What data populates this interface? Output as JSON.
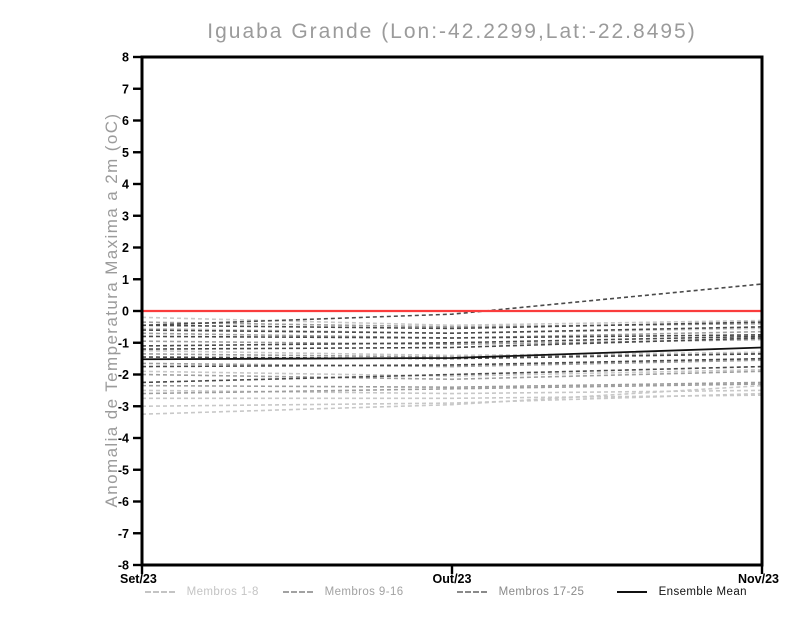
{
  "title": "Iguaba Grande (Lon:-42.2299,Lat:-22.8495)",
  "y_axis": {
    "label": "Anomalia de Temperatura Maxima a 2m (oC)",
    "min": -8,
    "max": 8,
    "tick_step": 1
  },
  "x_axis": {
    "labels": [
      "Set/23",
      "Out/23",
      "Nov/23"
    ]
  },
  "legend": [
    {
      "label": "Membros 1-8",
      "color": "#c4c4c4",
      "style": "dashed"
    },
    {
      "label": "Membros 9-16",
      "color": "#a2a2a2",
      "style": "dashed"
    },
    {
      "label": "Membros 17-25",
      "color": "#8a8a8a",
      "style": "dashed"
    },
    {
      "label": "Ensemble Mean",
      "color": "#111111",
      "style": "solid"
    }
  ],
  "colors": {
    "zero_line": "#fa3c3c",
    "frame": "#000000",
    "title_text": "#9b9b9b",
    "tick_text": "#000000",
    "member_groups": [
      "#c8c8c8",
      "#9e9e9e",
      "#4a4a4a"
    ],
    "ensemble_mean": "#111111"
  },
  "chart_data": {
    "type": "line",
    "x": [
      "Set/23",
      "Out/23",
      "Nov/23"
    ],
    "ylim": [
      -8,
      8
    ],
    "ytick_step": 1,
    "grid": false,
    "zero_line": 0,
    "title": "Iguaba Grande (Lon:-42.2299,Lat:-22.8495)",
    "ylabel": "Anomalia de Temperatura Maxima a 2m (oC)",
    "legend_position": "bottom",
    "groups": [
      {
        "name": "Membros 1-8",
        "style": "dashed",
        "members": [
          [
            -0.2,
            -0.45,
            -0.3
          ],
          [
            -0.55,
            -0.7,
            -0.55
          ],
          [
            -1.25,
            -1.4,
            -1.3
          ],
          [
            -1.9,
            -2.05,
            -1.85
          ],
          [
            -2.5,
            -2.6,
            -2.5
          ],
          [
            -2.75,
            -2.75,
            -2.65
          ],
          [
            -3.0,
            -2.9,
            -2.6
          ],
          [
            -3.25,
            -2.95,
            -2.35
          ]
        ]
      },
      {
        "name": "Membros 9-16",
        "style": "dashed",
        "members": [
          [
            -0.35,
            -0.5,
            -0.4
          ],
          [
            -0.7,
            -0.85,
            -0.65
          ],
          [
            -0.95,
            -1.05,
            -0.9
          ],
          [
            -1.35,
            -1.45,
            -1.35
          ],
          [
            -1.65,
            -1.75,
            -1.55
          ],
          [
            -2.0,
            -2.15,
            -1.9
          ],
          [
            -2.35,
            -2.4,
            -2.25
          ],
          [
            -2.6,
            -2.45,
            -2.3
          ]
        ]
      },
      {
        "name": "Membros 17-25",
        "style": "dashed",
        "members": [
          [
            -0.45,
            -0.1,
            0.85
          ],
          [
            -0.45,
            -0.55,
            -0.35
          ],
          [
            -0.6,
            -0.7,
            -0.5
          ],
          [
            -0.8,
            -0.85,
            -0.75
          ],
          [
            -1.1,
            -1.0,
            -0.8
          ],
          [
            -1.2,
            -1.15,
            -0.85
          ],
          [
            -1.45,
            -1.5,
            -1.35
          ],
          [
            -1.75,
            -1.7,
            -1.5
          ],
          [
            -2.25,
            -2.0,
            -1.75
          ]
        ]
      }
    ],
    "ensemble_mean": {
      "name": "Ensemble Mean",
      "style": "solid",
      "values": [
        -1.52,
        -1.48,
        -1.15
      ]
    }
  }
}
